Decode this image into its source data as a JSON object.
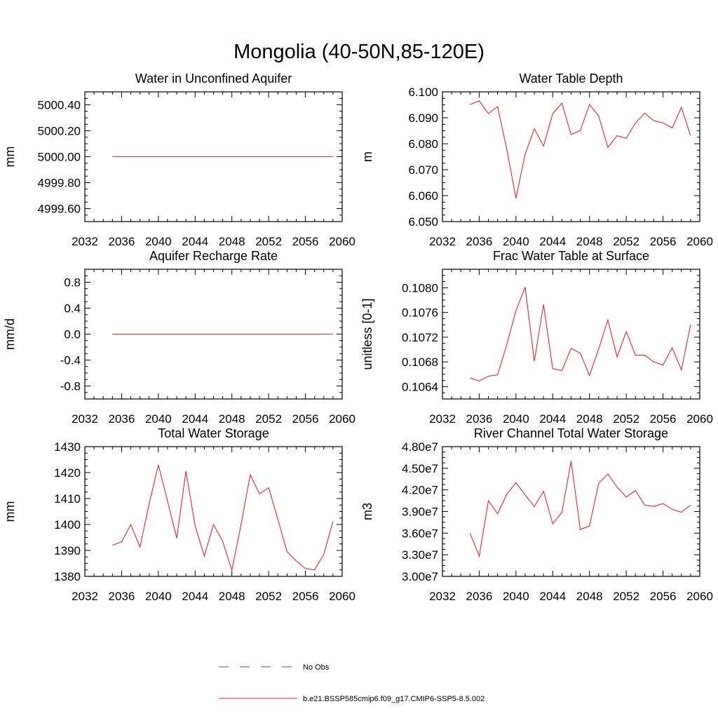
{
  "figure_title": "Mongolia (40-50N,85-120E)",
  "legend": [
    {
      "label": "No Obs",
      "color": "#4b4bc8",
      "dash": true
    },
    {
      "label": "b.e21.BSSP585cmip6.f09_g17.CMIP6-SSP5-8.5.002",
      "color": "#e8282b",
      "dash": false
    }
  ],
  "chart_data": [
    {
      "type": "line",
      "title": "Water in Unconfined Aquifer",
      "ylabel": "mm",
      "xlim": [
        2032,
        2060
      ],
      "xticks": [
        "2032",
        "2036",
        "2040",
        "2044",
        "2048",
        "2052",
        "2056",
        "2060"
      ],
      "ylim": [
        4999.5,
        5000.5
      ],
      "yticks": [
        4999.6,
        4999.8,
        5000.0,
        5000.2,
        5000.4
      ],
      "yticklabels": [
        "4999.60",
        "4999.80",
        "5000.00",
        "5000.20",
        "5000.40"
      ],
      "x": [
        2035,
        2036,
        2037,
        2038,
        2039,
        2040,
        2041,
        2042,
        2043,
        2044,
        2045,
        2046,
        2047,
        2048,
        2049,
        2050,
        2051,
        2052,
        2053,
        2054,
        2055,
        2056,
        2057,
        2058,
        2059
      ],
      "series": [
        {
          "color": "#e8282b",
          "values": [
            5000,
            5000,
            5000,
            5000,
            5000,
            5000,
            5000,
            5000,
            5000,
            5000,
            5000,
            5000,
            5000,
            5000,
            5000,
            5000,
            5000,
            5000,
            5000,
            5000,
            5000,
            5000,
            5000,
            5000,
            5000
          ]
        }
      ]
    },
    {
      "type": "line",
      "title": "Water Table Depth",
      "ylabel": "m",
      "xlim": [
        2032,
        2060
      ],
      "xticks": [
        "2032",
        "2036",
        "2040",
        "2044",
        "2048",
        "2052",
        "2056",
        "2060"
      ],
      "ylim": [
        6.05,
        6.1
      ],
      "yticks": [
        6.05,
        6.06,
        6.07,
        6.08,
        6.09,
        6.1
      ],
      "yticklabels": [
        "6.050",
        "6.060",
        "6.070",
        "6.080",
        "6.090",
        "6.100"
      ],
      "x": [
        2035,
        2036,
        2037,
        2038,
        2039,
        2040,
        2041,
        2042,
        2043,
        2044,
        2045,
        2046,
        2047,
        2048,
        2049,
        2050,
        2051,
        2052,
        2053,
        2054,
        2055,
        2056,
        2057,
        2058,
        2059
      ],
      "series": [
        {
          "color": "#e8282b",
          "values": [
            6.0951,
            6.0965,
            6.0916,
            6.0943,
            6.0779,
            6.059,
            6.076,
            6.0858,
            6.0791,
            6.0916,
            6.0956,
            6.0835,
            6.0851,
            6.0951,
            6.0907,
            6.0786,
            6.0831,
            6.0821,
            6.088,
            6.0918,
            6.0889,
            6.088,
            6.0861,
            6.094,
            6.0831
          ]
        }
      ]
    },
    {
      "type": "line",
      "title": "Aquifer Recharge Rate",
      "ylabel": "mm/d",
      "xlim": [
        2032,
        2060
      ],
      "xticks": [
        "2032",
        "2036",
        "2040",
        "2044",
        "2048",
        "2052",
        "2056",
        "2060"
      ],
      "ylim": [
        -1.0,
        1.0
      ],
      "yticks": [
        -0.8,
        -0.4,
        0.0,
        0.4,
        0.8
      ],
      "yticklabels": [
        "-0.8",
        "-0.4",
        "0.0",
        "0.4",
        "0.8"
      ],
      "x": [
        2035,
        2036,
        2037,
        2038,
        2039,
        2040,
        2041,
        2042,
        2043,
        2044,
        2045,
        2046,
        2047,
        2048,
        2049,
        2050,
        2051,
        2052,
        2053,
        2054,
        2055,
        2056,
        2057,
        2058,
        2059
      ],
      "series": [
        {
          "color": "#e8282b",
          "values": [
            0,
            0,
            0,
            0,
            0,
            0,
            0,
            0,
            0,
            0,
            0,
            0,
            0,
            0,
            0,
            0,
            0,
            0,
            0,
            0,
            0,
            0,
            0,
            0,
            0
          ]
        }
      ]
    },
    {
      "type": "line",
      "title": "Frac Water Table at Surface",
      "ylabel": "unitless [0-1]",
      "xlim": [
        2032,
        2060
      ],
      "xticks": [
        "2032",
        "2036",
        "2040",
        "2044",
        "2048",
        "2052",
        "2056",
        "2060"
      ],
      "ylim": [
        0.1062,
        0.1083
      ],
      "yticks": [
        0.1064,
        0.1068,
        0.1072,
        0.1076,
        0.108
      ],
      "yticklabels": [
        "0.1064",
        "0.1068",
        "0.1072",
        "0.1076",
        "0.1080"
      ],
      "x": [
        2035,
        2036,
        2037,
        2038,
        2039,
        2040,
        2041,
        2042,
        2043,
        2044,
        2045,
        2046,
        2047,
        2048,
        2049,
        2050,
        2051,
        2052,
        2053,
        2054,
        2055,
        2056,
        2057,
        2058,
        2059
      ],
      "series": [
        {
          "color": "#e8282b",
          "values": [
            0.10654,
            0.10649,
            0.10657,
            0.10659,
            0.10708,
            0.10763,
            0.10801,
            0.10681,
            0.10773,
            0.10669,
            0.10666,
            0.10702,
            0.10694,
            0.10658,
            0.10701,
            0.10748,
            0.10688,
            0.10729,
            0.10691,
            0.10691,
            0.1068,
            0.10675,
            0.10703,
            0.10667,
            0.1074
          ]
        }
      ]
    },
    {
      "type": "line",
      "title": "Total Water Storage",
      "ylabel": "mm",
      "xlim": [
        2032,
        2060
      ],
      "xticks": [
        "2032",
        "2036",
        "2040",
        "2044",
        "2048",
        "2052",
        "2056",
        "2060"
      ],
      "ylim": [
        1380,
        1430
      ],
      "yticks": [
        1380,
        1390,
        1400,
        1410,
        1420,
        1430
      ],
      "yticklabels": [
        "1380",
        "1390",
        "1400",
        "1410",
        "1420",
        "1430"
      ],
      "x": [
        2035,
        2036,
        2037,
        2038,
        2039,
        2040,
        2041,
        2042,
        2043,
        2044,
        2045,
        2046,
        2047,
        2048,
        2049,
        2050,
        2051,
        2052,
        2053,
        2054,
        2055,
        2056,
        2057,
        2058,
        2059
      ],
      "series": [
        {
          "color": "#e8282b",
          "values": [
            1392.0,
            1393.3,
            1400.0,
            1391.3,
            1408.0,
            1423.0,
            1409.0,
            1394.7,
            1420.5,
            1399.5,
            1387.8,
            1400.0,
            1393.5,
            1382.3,
            1400.0,
            1419.2,
            1411.8,
            1414.2,
            1402.0,
            1389.5,
            1386.0,
            1383.0,
            1382.5,
            1388.5,
            1401.2
          ]
        }
      ]
    },
    {
      "type": "line",
      "title": "River Channel Total Water Storage",
      "ylabel": "m3",
      "xlim": [
        2032,
        2060
      ],
      "xticks": [
        "2032",
        "2036",
        "2040",
        "2044",
        "2048",
        "2052",
        "2056",
        "2060"
      ],
      "ylim": [
        30000000.0,
        48000000.0
      ],
      "yticks": [
        30000000.0,
        33000000.0,
        36000000.0,
        39000000.0,
        42000000.0,
        45000000.0,
        48000000.0
      ],
      "yticklabels": [
        "3.00e7",
        "3.30e7",
        "3.60e7",
        "3.90e7",
        "4.20e7",
        "4.50e7",
        "4.80e7"
      ],
      "x": [
        2035,
        2036,
        2037,
        2038,
        2039,
        2040,
        2041,
        2042,
        2043,
        2044,
        2045,
        2046,
        2047,
        2048,
        2049,
        2050,
        2051,
        2052,
        2053,
        2054,
        2055,
        2056,
        2057,
        2058,
        2059
      ],
      "series": [
        {
          "color": "#e8282b",
          "values": [
            36000000.0,
            32800000.0,
            40500000.0,
            38700000.0,
            41400000.0,
            43000000.0,
            41300000.0,
            39700000.0,
            41800000.0,
            37300000.0,
            38900000.0,
            46000000.0,
            36500000.0,
            37000000.0,
            42900000.0,
            44200000.0,
            42400000.0,
            41000000.0,
            41900000.0,
            39900000.0,
            39700000.0,
            40100000.0,
            39300000.0,
            38900000.0,
            39900000.0
          ]
        }
      ]
    }
  ]
}
